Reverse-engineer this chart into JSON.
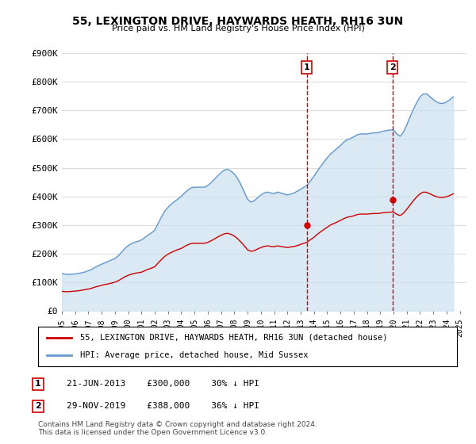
{
  "title": "55, LEXINGTON DRIVE, HAYWARDS HEATH, RH16 3UN",
  "subtitle": "Price paid vs. HM Land Registry's House Price Index (HPI)",
  "ylabel_ticks": [
    "£0",
    "£100K",
    "£200K",
    "£300K",
    "£400K",
    "£500K",
    "£600K",
    "£700K",
    "£800K",
    "£900K"
  ],
  "ytick_values": [
    0,
    100000,
    200000,
    300000,
    400000,
    500000,
    600000,
    700000,
    800000,
    900000
  ],
  "ylim": [
    0,
    900000
  ],
  "xlim_start": 1995.0,
  "xlim_end": 2025.5,
  "sale1_date": 2013.47,
  "sale1_price": 300000,
  "sale1_label": "1",
  "sale1_text": "21-JUN-2013    £300,000    30% ↓ HPI",
  "sale2_date": 2019.91,
  "sale2_price": 388000,
  "sale2_label": "2",
  "sale2_text": "29-NOV-2019    £388,000    36% ↓ HPI",
  "legend_line1": "55, LEXINGTON DRIVE, HAYWARDS HEATH, RH16 3UN (detached house)",
  "legend_line2": "HPI: Average price, detached house, Mid Sussex",
  "footer": "Contains HM Land Registry data © Crown copyright and database right 2024.\nThis data is licensed under the Open Government Licence v3.0.",
  "red_color": "#cc0000",
  "blue_color": "#6699cc",
  "blue_fill_color": "#cce0f0",
  "background_color": "#ffffff",
  "grid_color": "#dddddd",
  "hpi_data_x": [
    1995.0,
    1995.25,
    1995.5,
    1995.75,
    1996.0,
    1996.25,
    1996.5,
    1996.75,
    1997.0,
    1997.25,
    1997.5,
    1997.75,
    1998.0,
    1998.25,
    1998.5,
    1998.75,
    1999.0,
    1999.25,
    1999.5,
    1999.75,
    2000.0,
    2000.25,
    2000.5,
    2000.75,
    2001.0,
    2001.25,
    2001.5,
    2001.75,
    2002.0,
    2002.25,
    2002.5,
    2002.75,
    2003.0,
    2003.25,
    2003.5,
    2003.75,
    2004.0,
    2004.25,
    2004.5,
    2004.75,
    2005.0,
    2005.25,
    2005.5,
    2005.75,
    2006.0,
    2006.25,
    2006.5,
    2006.75,
    2007.0,
    2007.25,
    2007.5,
    2007.75,
    2008.0,
    2008.25,
    2008.5,
    2008.75,
    2009.0,
    2009.25,
    2009.5,
    2009.75,
    2010.0,
    2010.25,
    2010.5,
    2010.75,
    2011.0,
    2011.25,
    2011.5,
    2011.75,
    2012.0,
    2012.25,
    2012.5,
    2012.75,
    2013.0,
    2013.25,
    2013.5,
    2013.75,
    2014.0,
    2014.25,
    2014.5,
    2014.75,
    2015.0,
    2015.25,
    2015.5,
    2015.75,
    2016.0,
    2016.25,
    2016.5,
    2016.75,
    2017.0,
    2017.25,
    2017.5,
    2017.75,
    2018.0,
    2018.25,
    2018.5,
    2018.75,
    2019.0,
    2019.25,
    2019.5,
    2019.75,
    2020.0,
    2020.25,
    2020.5,
    2020.75,
    2021.0,
    2021.25,
    2021.5,
    2021.75,
    2022.0,
    2022.25,
    2022.5,
    2022.75,
    2023.0,
    2023.25,
    2023.5,
    2023.75,
    2024.0,
    2024.25,
    2024.5
  ],
  "hpi_data_y": [
    130000,
    128000,
    127000,
    128000,
    129000,
    131000,
    133000,
    136000,
    140000,
    145000,
    152000,
    158000,
    163000,
    168000,
    173000,
    178000,
    183000,
    192000,
    205000,
    218000,
    228000,
    235000,
    240000,
    243000,
    248000,
    256000,
    265000,
    272000,
    282000,
    305000,
    328000,
    348000,
    362000,
    373000,
    382000,
    391000,
    400000,
    412000,
    422000,
    430000,
    432000,
    432000,
    432000,
    432000,
    438000,
    448000,
    460000,
    472000,
    483000,
    492000,
    495000,
    488000,
    478000,
    462000,
    440000,
    415000,
    390000,
    380000,
    385000,
    395000,
    405000,
    412000,
    415000,
    412000,
    410000,
    415000,
    412000,
    408000,
    405000,
    408000,
    412000,
    418000,
    425000,
    432000,
    440000,
    455000,
    470000,
    488000,
    505000,
    520000,
    535000,
    548000,
    558000,
    568000,
    578000,
    590000,
    598000,
    602000,
    608000,
    615000,
    618000,
    618000,
    618000,
    620000,
    622000,
    622000,
    625000,
    628000,
    630000,
    632000,
    632000,
    618000,
    610000,
    625000,
    650000,
    678000,
    705000,
    728000,
    748000,
    758000,
    758000,
    748000,
    738000,
    730000,
    725000,
    725000,
    730000,
    738000,
    748000
  ],
  "price_data_x": [
    1995.0,
    1995.25,
    1995.5,
    1995.75,
    1996.0,
    1996.25,
    1996.5,
    1996.75,
    1997.0,
    1997.25,
    1997.5,
    1997.75,
    1998.0,
    1998.25,
    1998.5,
    1998.75,
    1999.0,
    1999.25,
    1999.5,
    1999.75,
    2000.0,
    2000.25,
    2000.5,
    2000.75,
    2001.0,
    2001.25,
    2001.5,
    2001.75,
    2002.0,
    2002.25,
    2002.5,
    2002.75,
    2003.0,
    2003.25,
    2003.5,
    2003.75,
    2004.0,
    2004.25,
    2004.5,
    2004.75,
    2005.0,
    2005.25,
    2005.5,
    2005.75,
    2006.0,
    2006.25,
    2006.5,
    2006.75,
    2007.0,
    2007.25,
    2007.5,
    2007.75,
    2008.0,
    2008.25,
    2008.5,
    2008.75,
    2009.0,
    2009.25,
    2009.5,
    2009.75,
    2010.0,
    2010.25,
    2010.5,
    2010.75,
    2011.0,
    2011.25,
    2011.5,
    2011.75,
    2012.0,
    2012.25,
    2012.5,
    2012.75,
    2013.0,
    2013.25,
    2013.5,
    2013.75,
    2014.0,
    2014.25,
    2014.5,
    2014.75,
    2015.0,
    2015.25,
    2015.5,
    2015.75,
    2016.0,
    2016.25,
    2016.5,
    2016.75,
    2017.0,
    2017.25,
    2017.5,
    2017.75,
    2018.0,
    2018.25,
    2018.5,
    2018.75,
    2019.0,
    2019.25,
    2019.5,
    2019.75,
    2020.0,
    2020.25,
    2020.5,
    2020.75,
    2021.0,
    2021.25,
    2021.5,
    2021.75,
    2022.0,
    2022.25,
    2022.5,
    2022.75,
    2023.0,
    2023.25,
    2023.5,
    2023.75,
    2024.0,
    2024.25,
    2024.5
  ],
  "price_data_y": [
    68000,
    67000,
    67000,
    68000,
    69000,
    70000,
    72000,
    74000,
    76000,
    79000,
    83000,
    86000,
    89000,
    92000,
    94000,
    97000,
    100000,
    105000,
    112000,
    119000,
    124000,
    128000,
    131000,
    133000,
    135000,
    140000,
    145000,
    149000,
    154000,
    167000,
    179000,
    190000,
    198000,
    204000,
    209000,
    214000,
    218000,
    225000,
    231000,
    235000,
    236000,
    236000,
    236000,
    236000,
    239000,
    245000,
    251000,
    258000,
    264000,
    269000,
    271000,
    267000,
    261000,
    252000,
    240000,
    227000,
    213000,
    208000,
    210000,
    216000,
    221000,
    225000,
    227000,
    225000,
    224000,
    227000,
    225000,
    223000,
    221000,
    223000,
    225000,
    228000,
    232000,
    236000,
    240000,
    249000,
    257000,
    267000,
    276000,
    284000,
    292000,
    300000,
    305000,
    310000,
    316000,
    322000,
    327000,
    329000,
    332000,
    336000,
    338000,
    338000,
    338000,
    339000,
    340000,
    340000,
    341000,
    343000,
    344000,
    345000,
    345000,
    337000,
    333000,
    341000,
    355000,
    370000,
    385000,
    398000,
    409000,
    415000,
    414000,
    409000,
    403000,
    399000,
    396000,
    396000,
    399000,
    403000,
    409000
  ]
}
